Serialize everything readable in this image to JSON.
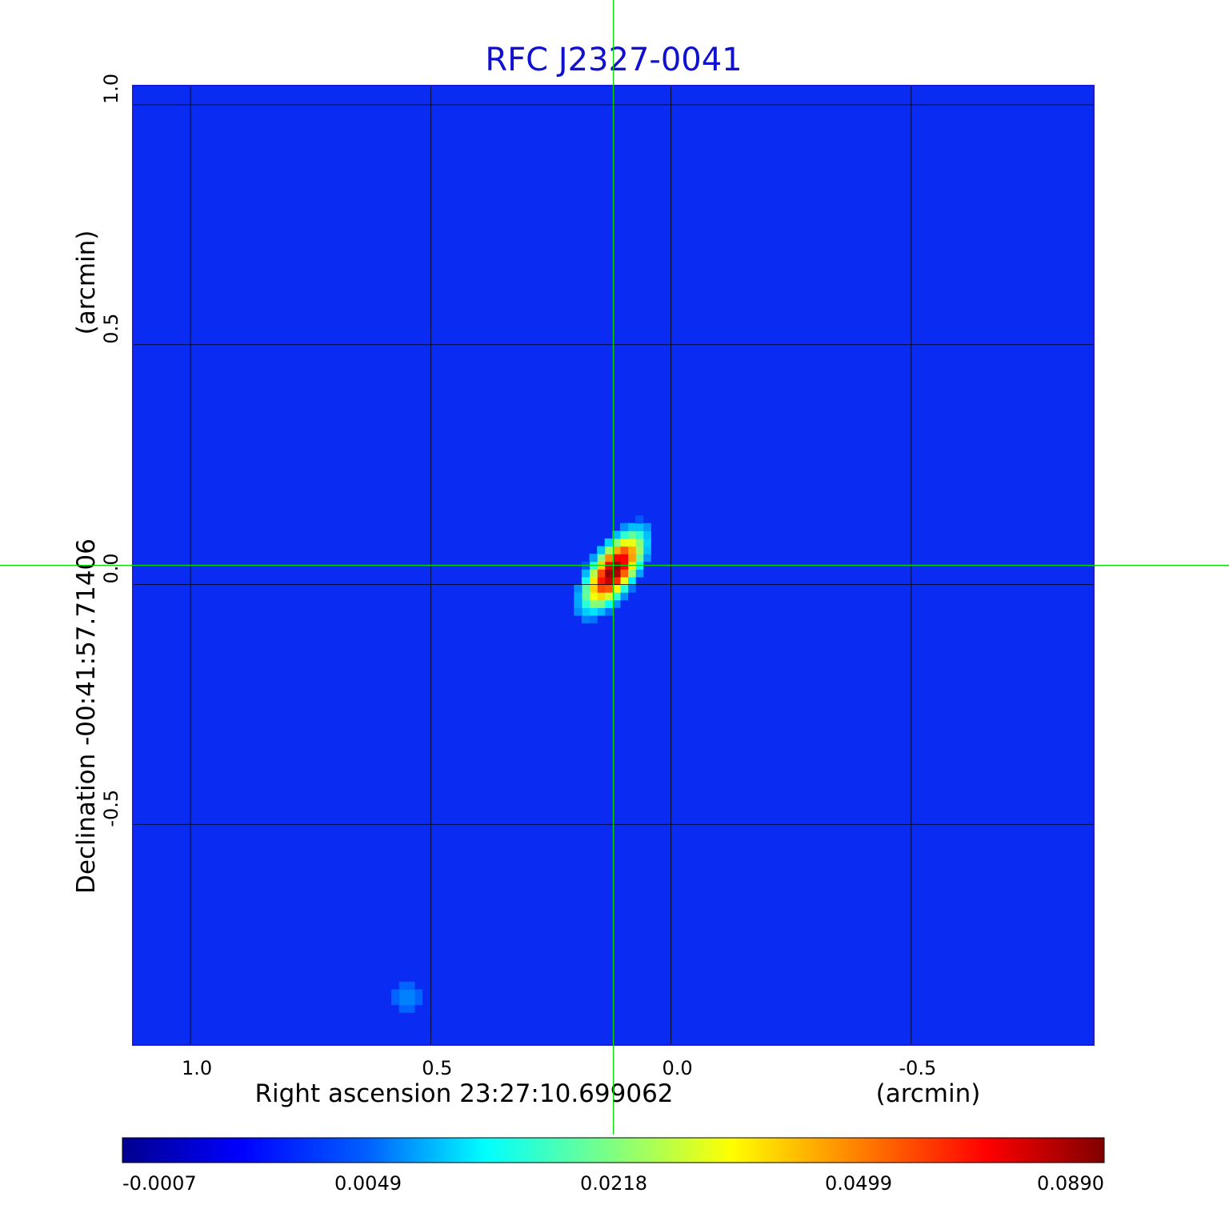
{
  "chart_data": {
    "type": "heatmap",
    "title": "RFC J2327-0041",
    "xlabel": "Right ascension  23:27:10.699062",
    "xunit": "(arcmin)",
    "ylabel": "Declination  -00:41:57.71406",
    "yunit": "(arcmin)",
    "x_ticks": [
      1.0,
      0.5,
      0.0,
      -0.5
    ],
    "x_tick_labels": [
      "1.0",
      "0.5",
      "0.0",
      "-0.5"
    ],
    "y_ticks": [
      1.0,
      0.5,
      0.0,
      -0.5
    ],
    "y_tick_labels": [
      "1.0",
      "0.5",
      "0.0",
      "-0.5"
    ],
    "xlim": [
      1.12,
      -0.88
    ],
    "ylim": [
      -0.96,
      1.04
    ],
    "grid": true,
    "crosshair": {
      "x": 0.12,
      "y": 0.04
    },
    "colorbar": {
      "ticks": [
        -0.0007,
        0.0049,
        0.0218,
        0.0499,
        0.089
      ],
      "tick_labels": [
        "-0.0007",
        "0.0049",
        "0.0218",
        "0.0499",
        "0.0890"
      ],
      "colormap": "jet"
    },
    "sources": [
      {
        "ra_offset": 0.12,
        "dec_offset": 0.03,
        "peak": 0.089,
        "sigma_major": 0.05,
        "sigma_minor": 0.022,
        "pa_deg": -55
      },
      {
        "ra_offset": 0.55,
        "dec_offset": -0.86,
        "peak": 0.0055,
        "sigma_major": 0.04,
        "sigma_minor": 0.04,
        "pa_deg": 0
      }
    ],
    "background_level": -0.0002
  },
  "colors": {
    "title": "#1010d0",
    "grid": "#000000",
    "crosshair": "#00e000",
    "frame": "#1a1ad8"
  }
}
